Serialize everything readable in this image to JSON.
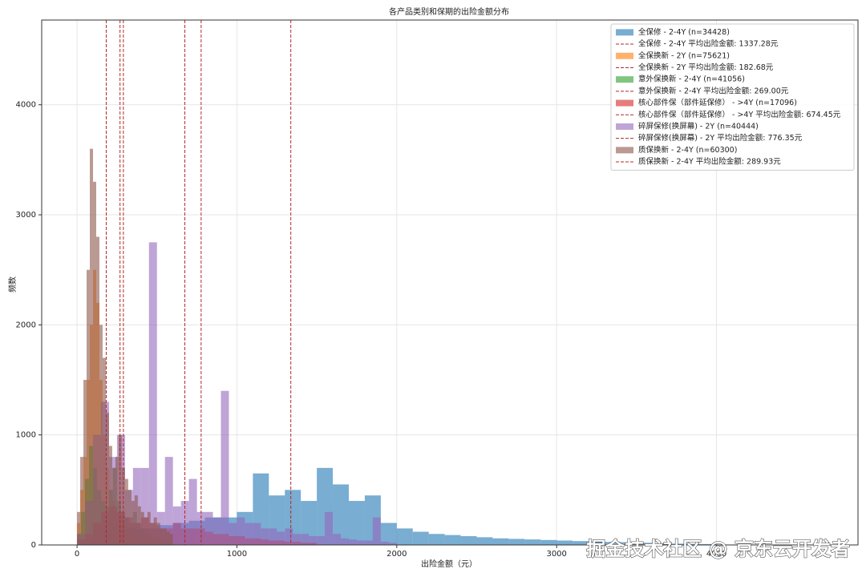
{
  "chart_data": {
    "type": "histogram",
    "title": "各产品类别和保期的出险金额分布",
    "xlabel": "出险金额（元）",
    "ylabel": "频数",
    "xlim": [
      -221,
      4885
    ],
    "ylim": [
      0,
      4770
    ],
    "xticks": [
      0,
      1000,
      2000,
      3000,
      4000
    ],
    "yticks": [
      0,
      1000,
      2000,
      3000,
      4000
    ],
    "grid": true,
    "legend": "upper right",
    "alpha": 0.6,
    "mean_line_color": "#b5282a",
    "watermark": "掘金技术社区 @ 京东云开发者",
    "series": [
      {
        "name": "全保修 - 2-4Y (n=34428)",
        "color": "#1f77b4",
        "mean": 1337.28,
        "mean_label": "全保修 - 2-4Y 平均出险金额: 1337.28元",
        "bins": [
          0,
          100,
          200,
          300,
          400,
          500,
          600,
          700,
          800,
          900,
          1000,
          1100,
          1200,
          1300,
          1400,
          1500,
          1600,
          1700,
          1800,
          1900,
          2000,
          2100,
          2200,
          2300,
          2400,
          2500,
          2600,
          2700,
          2800,
          2900,
          3000,
          3100,
          3200,
          3300,
          3400,
          3500,
          3600,
          3700,
          3800,
          3900,
          4000
        ],
        "values": [
          50,
          150,
          200,
          150,
          150,
          180,
          200,
          220,
          250,
          250,
          300,
          650,
          450,
          500,
          400,
          700,
          550,
          400,
          450,
          200,
          150,
          120,
          100,
          90,
          80,
          70,
          60,
          55,
          50,
          45,
          40,
          35,
          30,
          28,
          25,
          20,
          15,
          12,
          10,
          8
        ]
      },
      {
        "name": "全保换新 - 2Y (n=75621)",
        "color": "#ff7f0e",
        "mean": 182.68,
        "mean_label": "全保换新 - 2Y 平均出险金额: 182.68元",
        "bins": [
          0,
          20,
          40,
          60,
          80,
          100,
          120,
          140,
          160,
          180,
          200,
          220,
          240,
          260,
          280,
          300,
          320,
          340,
          360,
          380,
          400
        ],
        "values": [
          200,
          500,
          800,
          1500,
          2000,
          2500,
          2200,
          1500,
          1000,
          700,
          500,
          400,
          300,
          250,
          200,
          150,
          100,
          80,
          50,
          30
        ]
      },
      {
        "name": "意外保换新 - 2-4Y (n=41056)",
        "color": "#2ca02c",
        "mean": 269.0,
        "mean_label": "意外保换新 - 2-4Y 平均出险金额: 269.00元",
        "bins": [
          0,
          25,
          50,
          75,
          100,
          125,
          150,
          175,
          200,
          225,
          250,
          275,
          300,
          325,
          350,
          375,
          400,
          425,
          450,
          475,
          500,
          525,
          550,
          575,
          600
        ],
        "values": [
          100,
          300,
          600,
          900,
          700,
          500,
          400,
          350,
          500,
          700,
          400,
          300,
          250,
          200,
          300,
          200,
          150,
          100,
          80,
          60,
          50,
          40,
          30,
          20
        ]
      },
      {
        "name": "核心部件保（部件延保修） - >4Y (n=17096)",
        "color": "#d62728",
        "mean": 674.45,
        "mean_label": "核心部件保（部件延保修） - >4Y 平均出险金额: 674.45元",
        "bins": [
          0,
          50,
          100,
          150,
          200,
          250,
          300,
          350,
          400,
          450,
          500,
          550,
          600,
          650,
          700,
          750,
          800,
          850,
          900,
          950,
          1000,
          1050,
          1100,
          1150,
          1200,
          1250,
          1300,
          1350,
          1400,
          1450,
          1500
        ],
        "values": [
          50,
          100,
          200,
          300,
          350,
          300,
          250,
          200,
          250,
          200,
          150,
          150,
          200,
          150,
          150,
          150,
          120,
          100,
          100,
          80,
          80,
          60,
          60,
          50,
          40,
          40,
          30,
          30,
          20,
          20
        ]
      },
      {
        "name": "碎屏保修(换屏幕) - 2Y (n=40444)",
        "color": "#9467bd",
        "mean": 776.35,
        "mean_label": "碎屏保修(换屏幕) - 2Y 平均出险金额: 776.35元",
        "bins": [
          0,
          50,
          100,
          150,
          200,
          250,
          300,
          350,
          400,
          450,
          500,
          550,
          600,
          650,
          700,
          750,
          800,
          850,
          900,
          950,
          1000,
          1050,
          1100,
          1150,
          1200,
          1250,
          1300,
          1350,
          1400,
          1450,
          1500,
          1550,
          1600,
          1650,
          1700,
          1750,
          1800,
          1850,
          1900,
          1950,
          2000
        ],
        "values": [
          100,
          400,
          1000,
          1300,
          800,
          1000,
          500,
          700,
          700,
          2750,
          300,
          800,
          350,
          400,
          600,
          300,
          300,
          250,
          1400,
          200,
          250,
          200,
          200,
          150,
          150,
          120,
          150,
          100,
          100,
          80,
          80,
          300,
          100,
          60,
          50,
          40,
          40,
          250,
          30,
          20
        ]
      },
      {
        "name": "质保换新 - 2-4Y (n=60300)",
        "color": "#8c564b",
        "mean": 289.93,
        "mean_label": "质保换新 - 2-4Y 平均出险金额: 289.93元",
        "bins": [
          0,
          20,
          40,
          60,
          80,
          100,
          120,
          140,
          160,
          180,
          200,
          220,
          240,
          260,
          280,
          300,
          320,
          340,
          360,
          380,
          400,
          420,
          440,
          460,
          480,
          500,
          520,
          540,
          560,
          580,
          600
        ],
        "values": [
          300,
          800,
          1500,
          2500,
          3600,
          3300,
          2800,
          2000,
          1700,
          1200,
          900,
          700,
          800,
          1000,
          700,
          600,
          500,
          400,
          450,
          350,
          300,
          250,
          300,
          200,
          250,
          200,
          150,
          150,
          120,
          100
        ]
      }
    ]
  }
}
